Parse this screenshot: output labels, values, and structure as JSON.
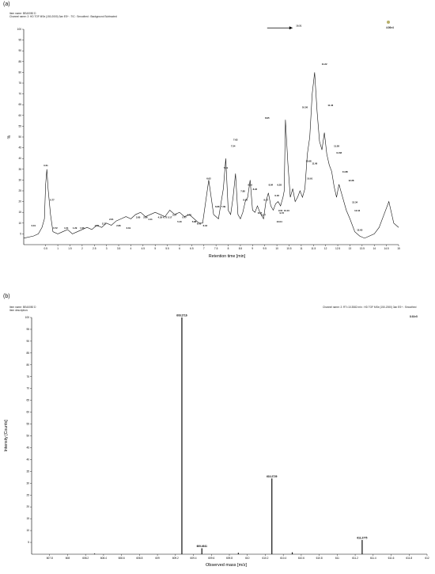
{
  "panels": [
    {
      "label": "(a)",
      "header_lines": [
        "Item name: BEA0050 D",
        "Channel name: 2: HD TOF MSe (150-2000) 3an ES+ : TIC : Smoothed : Background Subtracted"
      ],
      "max_label": "4.06e4"
    },
    {
      "label": "(b)",
      "header_lines": [
        "Item name: BEA0050 D",
        "Item description:"
      ],
      "header_right": "Channel name: 2: RT=10.3582 min : HD TOF MSe (150-2000) 3an ES+ : Smoothed",
      "max_label": "8.92e5"
    }
  ],
  "chart_data": [
    {
      "type": "line",
      "title": "",
      "xlabel": "Retention time [min]",
      "ylabel": "%",
      "xlim": [
        -0.4,
        15.0
      ],
      "ylim": [
        0,
        100
      ],
      "x_ticks": [
        "0.5",
        "1",
        "1.5",
        "2",
        "2.5",
        "3",
        "3.5",
        "4",
        "4.5",
        "5",
        "5.5",
        "6",
        "6.5",
        "7",
        "7.5",
        "8",
        "8.5",
        "9",
        "9.5",
        "10",
        "10.5",
        "11",
        "11.5",
        "12",
        "12.5",
        "13",
        "13.5",
        "14",
        "14.5",
        "15"
      ],
      "y_ticks": [
        "5",
        "10",
        "15",
        "20",
        "25",
        "30",
        "35",
        "40",
        "45",
        "50",
        "55",
        "60",
        "65",
        "70",
        "75",
        "80",
        "85",
        "90",
        "95",
        "100"
      ],
      "series": [
        {
          "x": [
            -0.4,
            0.0,
            0.2,
            0.35,
            0.45,
            0.5,
            0.55,
            0.6,
            0.7,
            0.8,
            1.0,
            1.2,
            1.4,
            1.6,
            1.8,
            2.0,
            2.2,
            2.4,
            2.6,
            2.8,
            3.0,
            3.2,
            3.4,
            3.6,
            3.8,
            4.0,
            4.2,
            4.4,
            4.6,
            4.8,
            5.0,
            5.2,
            5.4,
            5.6,
            5.8,
            6.0,
            6.2,
            6.4,
            6.6,
            6.8,
            6.95,
            7.05,
            7.2,
            7.4,
            7.6,
            7.8,
            7.9,
            8.0,
            8.1,
            8.2,
            8.3,
            8.4,
            8.5,
            8.6,
            8.7,
            8.8,
            8.9,
            9.0,
            9.1,
            9.2,
            9.3,
            9.35,
            9.45,
            9.55,
            9.65,
            9.75,
            9.85,
            9.95,
            10.05,
            10.15,
            10.25,
            10.3,
            10.35,
            10.45,
            10.55,
            10.65,
            10.75,
            10.85,
            10.95,
            11.05,
            11.15,
            11.25,
            11.35,
            11.45,
            11.55,
            11.65,
            11.75,
            11.85,
            11.95,
            12.05,
            12.15,
            12.25,
            12.35,
            12.45,
            12.55,
            12.7,
            12.85,
            13.0,
            13.2,
            13.4,
            13.6,
            13.8,
            14.0,
            14.2,
            14.4,
            14.6,
            14.8,
            15.0
          ],
          "y": [
            3,
            4,
            5,
            8,
            12,
            28,
            35,
            26,
            14,
            6,
            5,
            6,
            7,
            5,
            6,
            7,
            8,
            7,
            9,
            8,
            10,
            9,
            11,
            12,
            13,
            12,
            14,
            15,
            13,
            14,
            15,
            14,
            13,
            16,
            14,
            15,
            13,
            14,
            12,
            10,
            10,
            18,
            30,
            14,
            12,
            26,
            40,
            16,
            14,
            22,
            33,
            14,
            12,
            15,
            20,
            22,
            30,
            16,
            15,
            18,
            15,
            14,
            12,
            20,
            24,
            18,
            16,
            19,
            20,
            18,
            22,
            25,
            58,
            38,
            22,
            26,
            20,
            22,
            25,
            22,
            26,
            42,
            50,
            70,
            80,
            62,
            48,
            44,
            52,
            42,
            37,
            34,
            27,
            22,
            28,
            22,
            16,
            12,
            6,
            4,
            3,
            4,
            5,
            8,
            14,
            20,
            10,
            8
          ]
        }
      ],
      "peak_labels": [
        {
          "x": 0.0,
          "y": 8,
          "text": "0.01"
        },
        {
          "x": 0.51,
          "y": 36,
          "text": "0.51"
        },
        {
          "x": 0.77,
          "y": 20,
          "text": "0.77"
        },
        {
          "x": 0.9,
          "y": 7,
          "text": "0.72"
        },
        {
          "x": 1.35,
          "y": 7,
          "text": "1.01"
        },
        {
          "x": 1.7,
          "y": 7,
          "text": "1.29"
        },
        {
          "x": 2.0,
          "y": 7,
          "text": "1.56"
        },
        {
          "x": 2.6,
          "y": 8,
          "text": "1.94"
        },
        {
          "x": 2.9,
          "y": 9,
          "text": "2.27"
        },
        {
          "x": 3.2,
          "y": 11,
          "text": "2.61"
        },
        {
          "x": 3.5,
          "y": 8,
          "text": "2.80"
        },
        {
          "x": 3.9,
          "y": 7,
          "text": "3.19"
        },
        {
          "x": 4.3,
          "y": 12,
          "text": "3.80"
        },
        {
          "x": 4.6,
          "y": 12,
          "text": "3.96"
        },
        {
          "x": 4.8,
          "y": 11,
          "text": "4.11"
        },
        {
          "x": 5.2,
          "y": 12,
          "text": "4.35"
        },
        {
          "x": 5.4,
          "y": 12,
          "text": "4.72"
        },
        {
          "x": 5.6,
          "y": 12,
          "text": "5.17"
        },
        {
          "x": 5.8,
          "y": 13,
          "text": "5.27"
        },
        {
          "x": 6.0,
          "y": 10,
          "text": "5.40"
        },
        {
          "x": 6.2,
          "y": 12,
          "text": "5.47"
        },
        {
          "x": 6.4,
          "y": 13,
          "text": "5.70"
        },
        {
          "x": 6.6,
          "y": 10,
          "text": "5.88"
        },
        {
          "x": 6.8,
          "y": 9,
          "text": "6.06"
        },
        {
          "x": 7.05,
          "y": 8,
          "text": "6.43"
        },
        {
          "x": 7.2,
          "y": 30,
          "text": "6.62"
        },
        {
          "x": 7.55,
          "y": 17,
          "text": "6.86"
        },
        {
          "x": 7.8,
          "y": 17,
          "text": "7.09"
        },
        {
          "x": 7.9,
          "y": 35,
          "text": "7.31"
        },
        {
          "x": 8.2,
          "y": 45,
          "text": "7.34"
        },
        {
          "x": 8.3,
          "y": 48,
          "text": "7.63"
        },
        {
          "x": 8.6,
          "y": 24,
          "text": "7.88"
        },
        {
          "x": 8.7,
          "y": 20,
          "text": "8.04"
        },
        {
          "x": 8.9,
          "y": 27,
          "text": "8.16"
        },
        {
          "x": 9.1,
          "y": 25,
          "text": "8.23"
        },
        {
          "x": 9.3,
          "y": 14,
          "text": "8.37"
        },
        {
          "x": 9.45,
          "y": 13,
          "text": "8.57"
        },
        {
          "x": 9.55,
          "y": 20,
          "text": "8.72"
        },
        {
          "x": 9.75,
          "y": 27,
          "text": "8.84"
        },
        {
          "x": 9.6,
          "y": 58,
          "text": "8.95"
        },
        {
          "x": 10.0,
          "y": 22,
          "text": "9.18"
        },
        {
          "x": 10.1,
          "y": 27,
          "text": "9.28"
        },
        {
          "x": 10.15,
          "y": 15,
          "text": "9.61"
        },
        {
          "x": 10.2,
          "y": 14,
          "text": "9.73"
        },
        {
          "x": 10.1,
          "y": 10,
          "text": "10.04"
        },
        {
          "x": 10.4,
          "y": 15,
          "text": "10.10"
        },
        {
          "x": 10.9,
          "y": 101,
          "text": "10.31"
        },
        {
          "x": 11.15,
          "y": 63,
          "text": "10.56"
        },
        {
          "x": 11.3,
          "y": 38,
          "text": "10.68"
        },
        {
          "x": 11.35,
          "y": 30,
          "text": "10.91"
        },
        {
          "x": 11.55,
          "y": 37,
          "text": "11.06"
        },
        {
          "x": 11.95,
          "y": 83,
          "text": "11.22"
        },
        {
          "x": 12.2,
          "y": 64,
          "text": "11.43"
        },
        {
          "x": 12.45,
          "y": 45,
          "text": "11.58"
        },
        {
          "x": 12.55,
          "y": 42,
          "text": "11.68"
        },
        {
          "x": 12.8,
          "y": 33,
          "text": "11.88"
        },
        {
          "x": 13.05,
          "y": 29,
          "text": "12.28"
        },
        {
          "x": 13.2,
          "y": 19,
          "text": "12.34"
        },
        {
          "x": 13.3,
          "y": 15,
          "text": "12.43"
        },
        {
          "x": 13.4,
          "y": 6,
          "text": "12.65"
        }
      ],
      "annotation": "arrow pointing to 10.31 peak"
    },
    {
      "type": "bar",
      "title": "",
      "xlabel": "Observed mass [m/z]",
      "ylabel": "Intensity [Counts]",
      "xlim": [
        607.6,
        612.0
      ],
      "ylim": [
        0,
        100
      ],
      "x_ticks": [
        "607.8",
        "608",
        "608.2",
        "608.4",
        "608.6",
        "608.8",
        "609",
        "609.2",
        "609.4",
        "609.6",
        "609.8",
        "610",
        "610.2",
        "610.4",
        "610.6",
        "610.8",
        "611",
        "611.2",
        "611.4",
        "611.6",
        "611.8",
        "612"
      ],
      "y_ticks": [
        "5",
        "10",
        "15",
        "20",
        "25",
        "30",
        "35",
        "40",
        "45",
        "50",
        "55",
        "60",
        "65",
        "70",
        "75",
        "80",
        "85",
        "90",
        "95",
        "100"
      ],
      "peaks": [
        {
          "x": 609.2716,
          "y": 100
        },
        {
          "x": 609.4941,
          "y": 2.5
        },
        {
          "x": 610.2729,
          "y": 32
        },
        {
          "x": 611.2775,
          "y": 6
        },
        {
          "x": 610.5,
          "y": 0.8
        },
        {
          "x": 609.9,
          "y": 0.6
        },
        {
          "x": 608.3,
          "y": 0.3
        }
      ],
      "peak_labels": [
        {
          "x": 609.2716,
          "y": 100,
          "text": "609.2716"
        },
        {
          "x": 609.4941,
          "y": 2.5,
          "text": "609.4941"
        },
        {
          "x": 610.2729,
          "y": 32,
          "text": "610.2729"
        },
        {
          "x": 611.2775,
          "y": 6,
          "text": "611.2775"
        }
      ]
    }
  ]
}
